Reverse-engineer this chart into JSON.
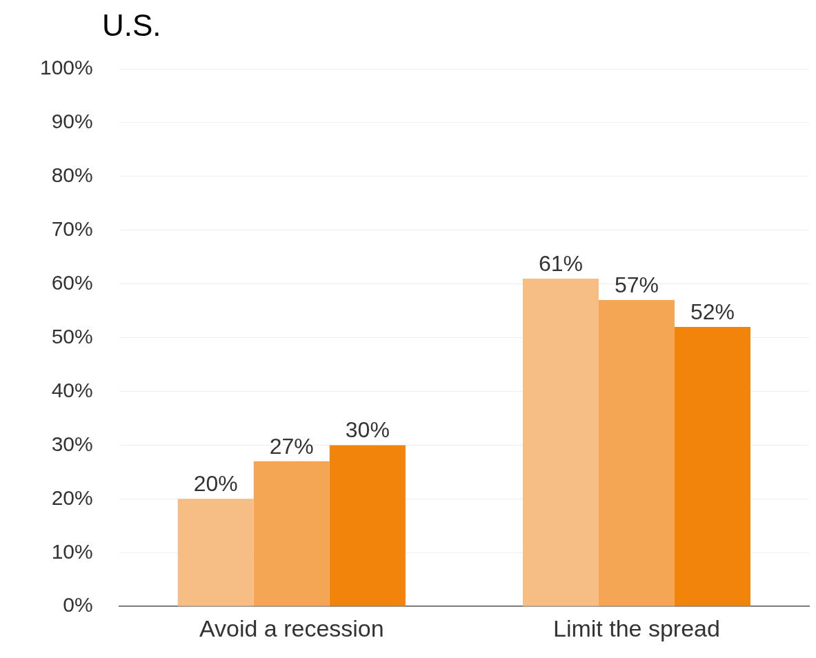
{
  "chart_data": {
    "type": "bar",
    "title": "U.S.",
    "categories": [
      "Avoid a recession",
      "Limit the spread"
    ],
    "series": [
      {
        "color": "#f6be84",
        "values": [
          20,
          61
        ],
        "value_labels": [
          "20%",
          "61%"
        ]
      },
      {
        "color": "#f4a654",
        "values": [
          27,
          57
        ],
        "value_labels": [
          "27%",
          "57%"
        ]
      },
      {
        "color": "#f2840c",
        "values": [
          30,
          52
        ],
        "value_labels": [
          "30%",
          "52%"
        ]
      }
    ],
    "ylim": [
      0,
      100
    ],
    "yticks": [
      {
        "value": 0,
        "label": "0%"
      },
      {
        "value": 10,
        "label": "10%"
      },
      {
        "value": 20,
        "label": "20%"
      },
      {
        "value": 30,
        "label": "30%"
      },
      {
        "value": 40,
        "label": "40%"
      },
      {
        "value": 50,
        "label": "50%"
      },
      {
        "value": 60,
        "label": "60%"
      },
      {
        "value": 70,
        "label": "70%"
      },
      {
        "value": 80,
        "label": "80%"
      },
      {
        "value": 90,
        "label": "90%"
      },
      {
        "value": 100,
        "label": "100%"
      }
    ],
    "grid": "y",
    "legend": false
  }
}
